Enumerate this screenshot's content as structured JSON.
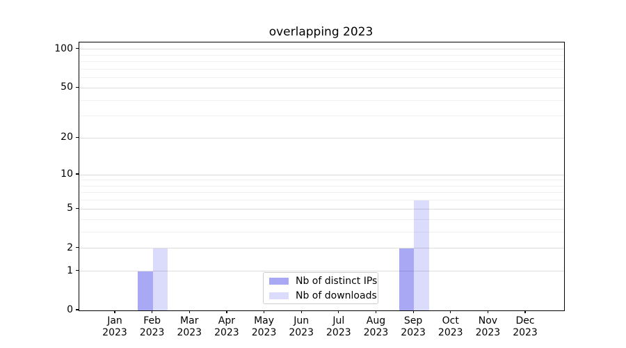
{
  "chart_data": {
    "type": "bar",
    "title": "overlapping 2023",
    "categories": [
      "Jan",
      "Feb",
      "Mar",
      "Apr",
      "May",
      "Jun",
      "Jul",
      "Aug",
      "Sep",
      "Oct",
      "Nov",
      "Dec"
    ],
    "year_label": "2023",
    "series": [
      {
        "name": "Nb of distinct IPs",
        "color": "#0000e057",
        "values": [
          0,
          1,
          0,
          0,
          0,
          0,
          0,
          0,
          2,
          0,
          0,
          0
        ]
      },
      {
        "name": "Nb of downloads",
        "color": "#0000e024",
        "values": [
          0,
          2,
          0,
          0,
          0,
          0,
          0,
          0,
          6,
          0,
          0,
          0
        ]
      }
    ],
    "y_axis": {
      "scale": "log1p",
      "ticks": [
        0,
        1,
        2,
        5,
        10,
        20,
        50,
        100
      ],
      "minor_gridlines": [
        3,
        4,
        6,
        7,
        8,
        9,
        30,
        40,
        60,
        70,
        80,
        90
      ],
      "ylim": [
        0,
        113
      ]
    },
    "x_axis": {
      "ticks_per_month": true
    },
    "legend": {
      "position": "lower-center"
    },
    "grid": {
      "major_color": "#dcdcdc",
      "minor_color": "#f1f1f1"
    }
  }
}
